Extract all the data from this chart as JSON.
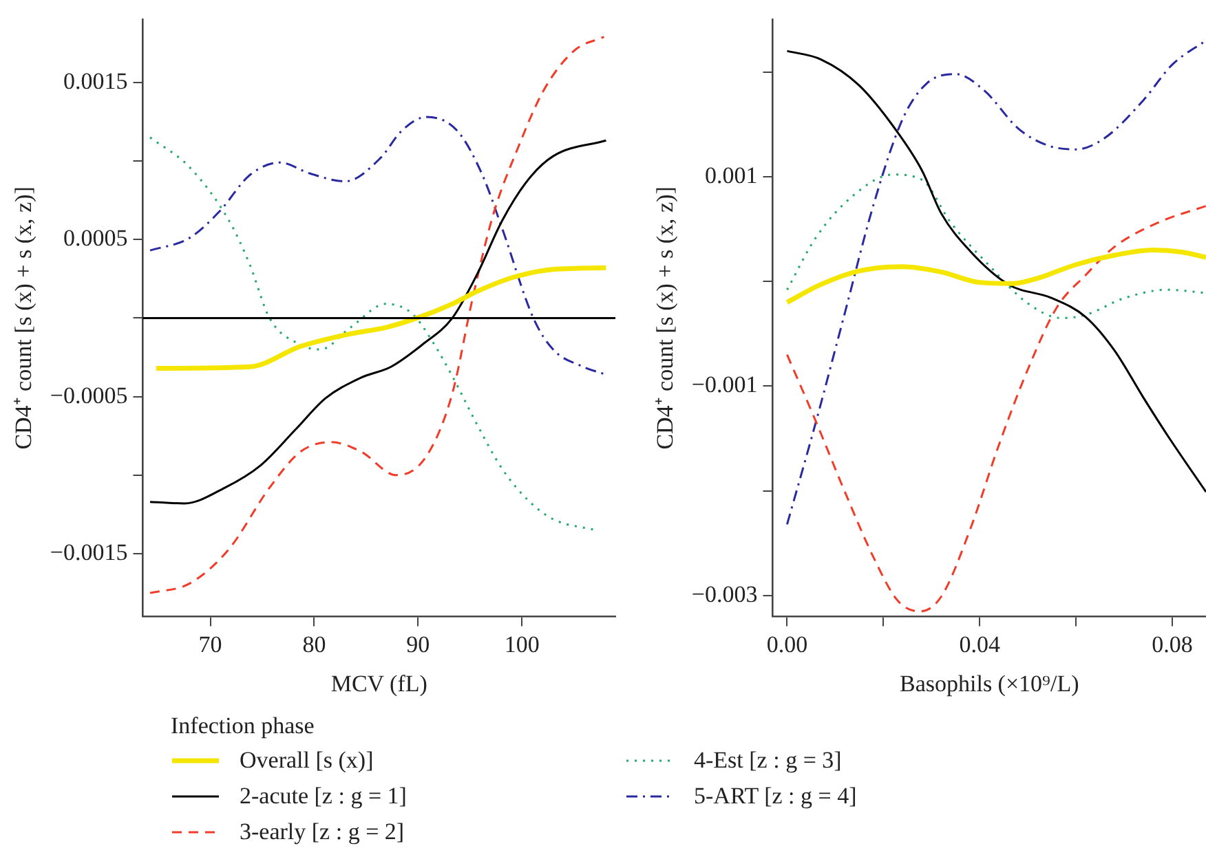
{
  "chart_data": [
    {
      "type": "line",
      "xlabel": "MCV (fL)",
      "ylabel": "CD4⁺ count [s (x) + s (x, z)]",
      "legend_title": "Infection phase",
      "legend": "bottom",
      "grid": false,
      "xlim": [
        63.5,
        109
      ],
      "xticks": [
        70,
        80,
        90,
        100
      ],
      "ylim": [
        -0.0019,
        0.0019
      ],
      "yticks": [
        {
          "value": -0.0015,
          "label": "−0.0015"
        },
        {
          "value": -0.001,
          "label": null
        },
        {
          "value": -0.0005,
          "label": "−0.0005"
        },
        {
          "value": 0,
          "label": null
        },
        {
          "value": 0.0005,
          "label": "0.0005"
        },
        {
          "value": 0.001,
          "label": null
        },
        {
          "value": 0.0015,
          "label": "0.0015"
        }
      ],
      "ref_lines": [
        {
          "axis": "y",
          "value": 0,
          "color": "#000000"
        }
      ],
      "series": [
        {
          "name": "Overall [s (x)]",
          "color": "#f5e600",
          "line_style": "solid",
          "x": [
            64.8,
            73.8,
            78.7,
            83.5,
            86.9,
            89.9,
            93.3,
            95.7,
            99.2,
            103.1,
            108.1
          ],
          "values": [
            -0.00032,
            -0.00031,
            -0.00018,
            -0.0001,
            -6e-05,
            0,
            9e-05,
            0.00017,
            0.00026,
            0.00031,
            0.00032
          ]
        },
        {
          "name": "2-acute [z : g = 1]",
          "color": "#000000",
          "line_style": "solid",
          "x": [
            64.2,
            67.5,
            71.4,
            74.8,
            78.2,
            81.1,
            84.5,
            87.4,
            90.4,
            93.3,
            95.7,
            98.1,
            100.6,
            103,
            108.1
          ],
          "values": [
            -0.00117,
            -0.00118,
            -0.00108,
            -0.00094,
            -0.00071,
            -0.00051,
            -0.00038,
            -0.00031,
            -0.00017,
            0,
            0.00028,
            0.00062,
            0.00088,
            0.00103,
            0.00113
          ]
        },
        {
          "name": "3-early [z : g = 2]",
          "color": "#f03c28",
          "line_style": "dashed",
          "x": [
            64.2,
            68,
            71.8,
            75.7,
            78.7,
            81.6,
            84.5,
            87.9,
            90.8,
            93.3,
            95.2,
            97.2,
            99.6,
            102.1,
            105,
            107.9
          ],
          "values": [
            -0.00175,
            -0.00169,
            -0.00147,
            -0.00108,
            -0.00085,
            -0.00079,
            -0.00085,
            -0.001,
            -0.00088,
            -0.00048,
            0.00011,
            0.00065,
            0.00108,
            0.00145,
            0.0017,
            0.00179
          ]
        },
        {
          "name": "4-Est [z : g = 3]",
          "color": "#22a86a",
          "line_style": "dotted",
          "x": [
            64.2,
            68,
            71.8,
            73.8,
            75.7,
            78.7,
            80.6,
            83.5,
            86.9,
            89.4,
            91.3,
            93.3,
            95.7,
            98.1,
            100.6,
            103,
            107.1
          ],
          "values": [
            0.00115,
            0.00096,
            0.00062,
            0.00034,
            0,
            -0.00017,
            -0.0002,
            -6e-05,
            9e-05,
            3e-05,
            -0.00014,
            -0.00037,
            -0.00068,
            -0.00096,
            -0.00116,
            -0.00128,
            -0.00135
          ]
        },
        {
          "name": "5-ART [z : g = 4]",
          "color": "#2a2aa0",
          "line_style": "dashdot",
          "x": [
            64.2,
            68,
            70.9,
            73.8,
            76.7,
            79.6,
            83,
            86.4,
            88.4,
            90.8,
            93.8,
            96.2,
            98.1,
            101.1,
            103,
            105.9,
            108.1
          ],
          "values": [
            0.00043,
            0.00051,
            0.00068,
            0.00091,
            0.00099,
            0.00092,
            0.00087,
            0.00102,
            0.00119,
            0.00128,
            0.00119,
            0.00091,
            0.00057,
            0,
            -0.0002,
            -0.00031,
            -0.00036
          ]
        }
      ]
    },
    {
      "type": "line",
      "xlabel": "Basophils (×10⁹/L)",
      "ylabel": "CD4⁺ count [s (x) + s (x, z)]",
      "grid": false,
      "xlim": [
        -0.003,
        0.087
      ],
      "xticks": [
        {
          "value": 0,
          "label": "0.00"
        },
        {
          "value": 0.02,
          "label": null
        },
        {
          "value": 0.04,
          "label": "0.04"
        },
        {
          "value": 0.06,
          "label": null
        },
        {
          "value": 0.08,
          "label": "0.08"
        }
      ],
      "ylim": [
        -0.0032,
        0.0025
      ],
      "yticks": [
        {
          "value": -0.003,
          "label": "−0.003"
        },
        {
          "value": -0.002,
          "label": null
        },
        {
          "value": -0.001,
          "label": "−0.001"
        },
        {
          "value": 0,
          "label": null
        },
        {
          "value": 0.001,
          "label": "0.001"
        },
        {
          "value": 0.002,
          "label": null
        }
      ],
      "series": [
        {
          "color": "#f5e600",
          "line_style": "solid",
          "x": [
            0,
            0.007,
            0.015,
            0.024,
            0.032,
            0.04,
            0.047,
            0.052,
            0.06,
            0.068,
            0.076,
            0.082,
            0.087
          ],
          "values": [
            -0.0002,
            -3e-05,
            0.0001,
            0.00014,
            9e-05,
            -1e-05,
            -2e-05,
            3e-05,
            0.00016,
            0.00025,
            0.0003,
            0.00028,
            0.00023
          ]
        },
        {
          "color": "#000000",
          "line_style": "solid",
          "x": [
            0,
            0.007,
            0.015,
            0.023,
            0.028,
            0.032,
            0.038,
            0.046,
            0.055,
            0.062,
            0.068,
            0.074,
            0.079,
            0.087
          ],
          "values": [
            0.0022,
            0.00212,
            0.00187,
            0.00142,
            0.00106,
            0.00065,
            0.00029,
            -3e-05,
            -0.00016,
            -0.00034,
            -0.00066,
            -0.00111,
            -0.00147,
            -0.00201
          ]
        },
        {
          "color": "#f03c28",
          "line_style": "dashed",
          "x": [
            0,
            0.006,
            0.012,
            0.018,
            0.023,
            0.0276,
            0.032,
            0.038,
            0.044,
            0.05,
            0.056,
            0.062,
            0.068,
            0.077,
            0.087
          ],
          "values": [
            -0.0007,
            -0.00134,
            -0.00201,
            -0.00264,
            -0.00305,
            -0.00315,
            -0.00301,
            -0.00237,
            -0.00156,
            -0.00084,
            -0.00025,
            6e-05,
            0.00033,
            0.00056,
            0.00072
          ]
        },
        {
          "color": "#22a86a",
          "line_style": "dotted",
          "x": [
            0,
            0.006,
            0.014,
            0.022,
            0.028,
            0.034,
            0.042,
            0.05,
            0.057,
            0.062,
            0.07,
            0.079,
            0.087
          ],
          "values": [
            -8e-05,
            0.00042,
            0.00083,
            0.00102,
            0.00097,
            0.00056,
            0.00015,
            -0.00021,
            -0.00035,
            -0.00032,
            -0.00016,
            -8e-05,
            -0.00011
          ]
        },
        {
          "color": "#2a2aa0",
          "line_style": "dashdot",
          "x": [
            0,
            0.006,
            0.012,
            0.018,
            0.024,
            0.029,
            0.035,
            0.041,
            0.048,
            0.054,
            0.06,
            0.066,
            0.074,
            0.08,
            0.087
          ],
          "values": [
            -0.00232,
            -0.00134,
            -0.0003,
            0.00074,
            0.00155,
            0.00189,
            0.00198,
            0.00182,
            0.00146,
            0.0013,
            0.00126,
            0.00137,
            0.00173,
            0.00207,
            0.0023
          ]
        }
      ]
    }
  ]
}
